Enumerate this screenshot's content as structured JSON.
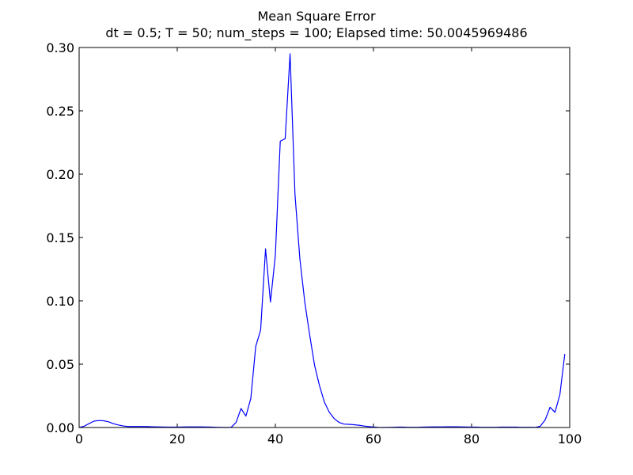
{
  "chart_data": {
    "type": "line",
    "title": "Mean Square Error",
    "subtitle": "dt = 0.5; T = 50; num_steps = 100; Elapsed time: 50.0045969486",
    "xlabel": "",
    "ylabel": "",
    "xlim": [
      0,
      100
    ],
    "ylim": [
      0,
      0.3
    ],
    "grid": false,
    "x_ticks": [
      0,
      20,
      40,
      60,
      80,
      100
    ],
    "x_tick_labels": [
      "0",
      "20",
      "40",
      "60",
      "80",
      "100"
    ],
    "y_ticks": [
      0.0,
      0.05,
      0.1,
      0.15,
      0.2,
      0.25,
      0.3
    ],
    "y_tick_labels": [
      "0.00",
      "0.05",
      "0.10",
      "0.15",
      "0.20",
      "0.25",
      "0.30"
    ],
    "series": [
      {
        "color": "#0000ff",
        "x": [
          0,
          1,
          2,
          3,
          4,
          5,
          6,
          7,
          8,
          9,
          10,
          11,
          12,
          13,
          14,
          15,
          16,
          17,
          18,
          19,
          20,
          21,
          22,
          23,
          24,
          25,
          26,
          27,
          28,
          29,
          30,
          31,
          32,
          33,
          34,
          35,
          36,
          37,
          38,
          39,
          40,
          41,
          42,
          43,
          44,
          45,
          46,
          47,
          48,
          49,
          50,
          51,
          52,
          53,
          54,
          55,
          56,
          57,
          58,
          59,
          60,
          61,
          62,
          63,
          64,
          65,
          66,
          67,
          68,
          69,
          70,
          71,
          72,
          73,
          74,
          75,
          76,
          77,
          78,
          79,
          80,
          81,
          82,
          83,
          84,
          85,
          86,
          87,
          88,
          89,
          90,
          91,
          92,
          93,
          94,
          95,
          96,
          97,
          98,
          99
        ],
        "y": [
          0.0,
          0.001,
          0.003,
          0.005,
          0.0055,
          0.0053,
          0.0045,
          0.003,
          0.002,
          0.0012,
          0.0008,
          0.0008,
          0.0008,
          0.0008,
          0.0007,
          0.0006,
          0.0005,
          0.0004,
          0.0003,
          0.0003,
          0.0003,
          0.0004,
          0.0005,
          0.0005,
          0.0005,
          0.0005,
          0.0004,
          0.0003,
          0.0002,
          0.0001,
          0.0,
          0.0002,
          0.004,
          0.015,
          0.009,
          0.023,
          0.064,
          0.077,
          0.141,
          0.099,
          0.136,
          0.226,
          0.228,
          0.295,
          0.184,
          0.133,
          0.099,
          0.073,
          0.049,
          0.033,
          0.02,
          0.012,
          0.007,
          0.004,
          0.0027,
          0.0025,
          0.0022,
          0.0018,
          0.0012,
          0.0007,
          0.0004,
          0.0001,
          0.0,
          0.0001,
          0.0002,
          0.0003,
          0.0003,
          0.0002,
          0.0002,
          0.0002,
          0.0003,
          0.0004,
          0.0005,
          0.0005,
          0.0005,
          0.0006,
          0.0006,
          0.0006,
          0.0005,
          0.0004,
          0.0003,
          0.0003,
          0.0002,
          0.0002,
          0.0002,
          0.0002,
          0.0003,
          0.0003,
          0.0003,
          0.0003,
          0.0002,
          0.0002,
          0.0002,
          0.0001,
          0.001,
          0.006,
          0.016,
          0.012,
          0.026,
          0.058
        ]
      }
    ]
  }
}
